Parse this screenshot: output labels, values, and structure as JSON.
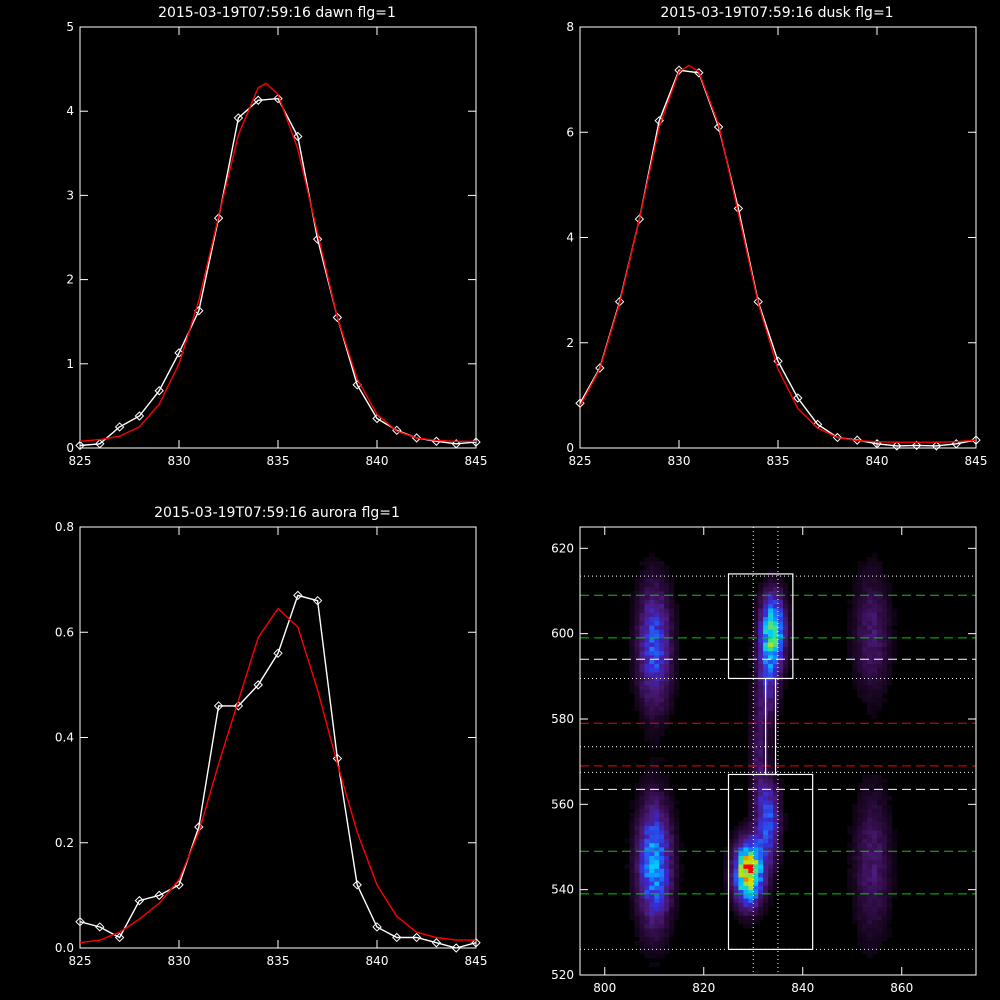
{
  "colors": {
    "background": "#000000",
    "axis": "#ffffff",
    "observed": "#ffffff",
    "fit": "#ff0000",
    "guide_green": "#00cc00",
    "guide_white": "#ffffff",
    "guide_red": "#ff0000"
  },
  "chart_data": [
    {
      "id": "dawn",
      "type": "line",
      "title": "2015-03-19T07:59:16 dawn flg=1",
      "xlim": [
        825,
        845
      ],
      "ylim": [
        0,
        5
      ],
      "xticks": [
        825,
        830,
        835,
        840,
        845
      ],
      "yticks": [
        0,
        1,
        2,
        3,
        4,
        5
      ],
      "series": [
        {
          "role": "observed",
          "marker": "diamond",
          "x": [
            825,
            826,
            827,
            828,
            829,
            830,
            831,
            832,
            833,
            834,
            835,
            836,
            837,
            838,
            839,
            840,
            841,
            842,
            843,
            844,
            845
          ],
          "y": [
            0.03,
            0.05,
            0.25,
            0.38,
            0.68,
            1.13,
            1.63,
            2.73,
            3.92,
            4.13,
            4.15,
            3.7,
            2.48,
            1.55,
            0.75,
            0.35,
            0.21,
            0.12,
            0.08,
            0.05,
            0.07
          ]
        },
        {
          "role": "fit",
          "x": [
            825,
            826,
            827,
            828,
            829,
            830,
            831,
            832,
            833,
            834,
            834.4,
            835,
            836,
            837,
            838,
            839,
            840,
            841,
            842,
            843,
            844,
            845
          ],
          "y": [
            0.08,
            0.1,
            0.14,
            0.25,
            0.52,
            1.0,
            1.75,
            2.75,
            3.72,
            4.28,
            4.33,
            4.2,
            3.55,
            2.55,
            1.55,
            0.82,
            0.4,
            0.2,
            0.12,
            0.09,
            0.08,
            0.08
          ]
        }
      ]
    },
    {
      "id": "dusk",
      "type": "line",
      "title": "2015-03-19T07:59:16 dusk flg=1",
      "xlim": [
        825,
        845
      ],
      "ylim": [
        0,
        8
      ],
      "xticks": [
        825,
        830,
        835,
        840,
        845
      ],
      "yticks": [
        0,
        2,
        4,
        6,
        8
      ],
      "series": [
        {
          "role": "observed",
          "marker": "diamond",
          "x": [
            825,
            826,
            827,
            828,
            829,
            830,
            831,
            832,
            833,
            834,
            835,
            836,
            837,
            838,
            839,
            840,
            841,
            842,
            843,
            844,
            845
          ],
          "y": [
            0.85,
            1.52,
            2.78,
            4.35,
            6.22,
            7.18,
            7.13,
            6.1,
            4.55,
            2.78,
            1.65,
            0.95,
            0.45,
            0.2,
            0.15,
            0.08,
            0.04,
            0.05,
            0.04,
            0.08,
            0.15
          ]
        },
        {
          "role": "fit",
          "x": [
            825,
            826,
            827,
            828,
            829,
            830,
            830.5,
            831,
            832,
            833,
            834,
            835,
            836,
            837,
            838,
            839,
            840,
            841,
            842,
            843,
            844,
            845
          ],
          "y": [
            0.8,
            1.5,
            2.75,
            4.35,
            6.1,
            7.15,
            7.27,
            7.15,
            6.15,
            4.45,
            2.75,
            1.5,
            0.75,
            0.38,
            0.2,
            0.14,
            0.12,
            0.11,
            0.11,
            0.11,
            0.12,
            0.15
          ]
        }
      ]
    },
    {
      "id": "aurora",
      "type": "line",
      "title": "2015-03-19T07:59:16 aurora flg=1",
      "xlim": [
        825,
        845
      ],
      "ylim": [
        0,
        0.8
      ],
      "xticks": [
        825,
        830,
        835,
        840,
        845
      ],
      "yticks": [
        0.0,
        0.2,
        0.4,
        0.6,
        0.8
      ],
      "series": [
        {
          "role": "observed",
          "marker": "diamond",
          "x": [
            825,
            826,
            827,
            828,
            829,
            830,
            831,
            832,
            833,
            834,
            835,
            836,
            837,
            838,
            839,
            840,
            841,
            842,
            843,
            844,
            845
          ],
          "y": [
            0.05,
            0.04,
            0.02,
            0.09,
            0.1,
            0.12,
            0.23,
            0.46,
            0.46,
            0.5,
            0.56,
            0.67,
            0.66,
            0.36,
            0.12,
            0.04,
            0.02,
            0.02,
            0.01,
            0.0,
            0.01
          ]
        },
        {
          "role": "fit",
          "x": [
            825,
            826,
            827,
            828,
            829,
            830,
            831,
            832,
            833,
            834,
            835,
            836,
            837,
            838,
            839,
            840,
            841,
            842,
            843,
            844,
            845
          ],
          "y": [
            0.01,
            0.015,
            0.03,
            0.055,
            0.085,
            0.13,
            0.22,
            0.35,
            0.47,
            0.59,
            0.645,
            0.61,
            0.49,
            0.35,
            0.22,
            0.12,
            0.06,
            0.03,
            0.02,
            0.015,
            0.015
          ]
        }
      ]
    },
    {
      "id": "spectrogram",
      "type": "heatmap",
      "title": "",
      "xlim": [
        795,
        875
      ],
      "ylim": [
        520,
        625
      ],
      "xticks": [
        800,
        820,
        840,
        860
      ],
      "yticks": [
        520,
        540,
        560,
        580,
        600,
        620
      ],
      "colormap": [
        "#000000",
        "#2a0a3a",
        "#4b1a7a",
        "#3a2ad0",
        "#1e6bff",
        "#00c8ff",
        "#2ee09a",
        "#d8e000",
        "#ff0000"
      ],
      "blobs": [
        {
          "x": 810,
          "y": 597,
          "sx": 2.4,
          "sy": 10,
          "peak": 0.45
        },
        {
          "x": 810,
          "y": 546,
          "sx": 2.4,
          "sy": 10,
          "peak": 0.58
        },
        {
          "x": 834,
          "y": 601,
          "sx": 1.8,
          "sy": 6,
          "peak": 0.66
        },
        {
          "x": 833,
          "y": 590,
          "sx": 1.5,
          "sy": 8,
          "peak": 0.3
        },
        {
          "x": 829,
          "y": 544,
          "sx": 2.0,
          "sy": 5,
          "peak": 1.0
        },
        {
          "x": 833,
          "y": 556,
          "sx": 1.6,
          "sy": 7,
          "peak": 0.45
        },
        {
          "x": 831,
          "y": 572,
          "sx": 1.2,
          "sy": 10,
          "peak": 0.18
        },
        {
          "x": 854,
          "y": 600,
          "sx": 2.6,
          "sy": 10,
          "peak": 0.22
        },
        {
          "x": 854,
          "y": 546,
          "sx": 2.6,
          "sy": 12,
          "peak": 0.22
        }
      ],
      "vlines": [
        {
          "x": 830,
          "style": "dotted",
          "color": "#ffffff"
        },
        {
          "x": 835,
          "style": "dotted",
          "color": "#ffffff"
        }
      ],
      "hlines": [
        {
          "y": 613.5,
          "style": "dotted",
          "color": "#ffffff"
        },
        {
          "y": 609,
          "style": "dashed",
          "color": "#00cc00"
        },
        {
          "y": 599,
          "style": "dashed",
          "color": "#00cc00"
        },
        {
          "y": 594,
          "style": "dashed",
          "color": "#ffffff"
        },
        {
          "y": 589.5,
          "style": "dotted",
          "color": "#ffffff"
        },
        {
          "y": 579,
          "style": "dashed",
          "color": "#ff0000"
        },
        {
          "y": 573.5,
          "style": "dotted",
          "color": "#ffffff"
        },
        {
          "y": 569,
          "style": "dashed",
          "color": "#ff0000"
        },
        {
          "y": 567.5,
          "style": "dotted",
          "color": "#ffffff"
        },
        {
          "y": 563.5,
          "style": "dashed",
          "color": "#ffffff"
        },
        {
          "y": 549,
          "style": "dashed",
          "color": "#00cc00"
        },
        {
          "y": 539,
          "style": "dashed",
          "color": "#00cc00"
        },
        {
          "y": 526,
          "style": "dotted",
          "color": "#ffffff"
        }
      ],
      "boxes": [
        {
          "x0": 825,
          "x1": 838,
          "y0": 589.5,
          "y1": 614
        },
        {
          "x0": 825,
          "x1": 842,
          "y0": 526,
          "y1": 567
        },
        {
          "x0": 832.5,
          "x1": 834.5,
          "y0": 567,
          "y1": 589.5
        }
      ]
    }
  ]
}
